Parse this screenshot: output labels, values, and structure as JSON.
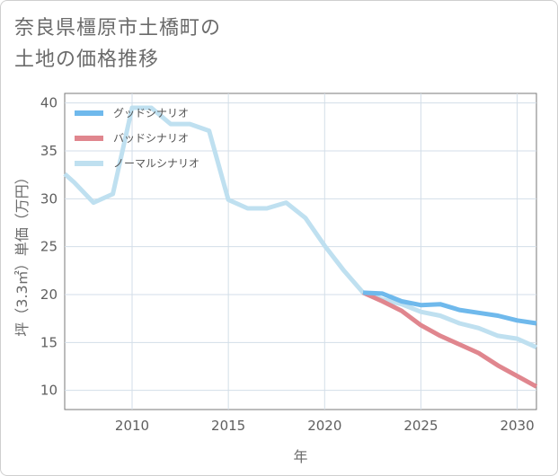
{
  "title": {
    "line1": "奈良県橿原市土橋町の",
    "line2": "土地の価格推移"
  },
  "chart_data": {
    "type": "line",
    "title": "奈良県橿原市土橋町の土地の価格推移",
    "xlabel": "年",
    "ylabel": "坪（3.3㎡）単価（万円）",
    "xlim": [
      2006.5,
      2031
    ],
    "ylim": [
      8,
      41
    ],
    "x_ticks": [
      2010,
      2015,
      2020,
      2025,
      2030
    ],
    "y_ticks": [
      10,
      15,
      20,
      25,
      30,
      35,
      40
    ],
    "grid": true,
    "legend_position": "top-left",
    "series": [
      {
        "name": "グッドシナリオ",
        "color": "#6fb9ec",
        "x": [
          2022,
          2023,
          2024,
          2025,
          2026,
          2027,
          2028,
          2029,
          2030,
          2031
        ],
        "values": [
          20.2,
          20.1,
          19.3,
          18.9,
          19.0,
          18.4,
          18.1,
          17.8,
          17.3,
          17.0
        ]
      },
      {
        "name": "バッドシナリオ",
        "color": "#e0868e",
        "x": [
          2022,
          2023,
          2024,
          2025,
          2026,
          2027,
          2028,
          2029,
          2030,
          2031
        ],
        "values": [
          20.2,
          19.3,
          18.3,
          16.8,
          15.7,
          14.8,
          13.9,
          12.6,
          11.5,
          10.4
        ]
      },
      {
        "name": "ノーマルシナリオ",
        "color": "#bfe0f0",
        "x": [
          2006.5,
          2007,
          2008,
          2009,
          2010,
          2011,
          2012,
          2013,
          2014,
          2015,
          2016,
          2017,
          2018,
          2019,
          2020,
          2021,
          2022,
          2023,
          2024,
          2025,
          2026,
          2027,
          2028,
          2029,
          2030,
          2031
        ],
        "values": [
          32.6,
          31.7,
          29.6,
          30.5,
          39.5,
          39.5,
          37.8,
          37.8,
          37.1,
          29.9,
          29.0,
          29.0,
          29.6,
          28.0,
          25.1,
          22.5,
          20.2,
          19.5,
          19.0,
          18.2,
          17.8,
          17.0,
          16.5,
          15.7,
          15.4,
          14.5
        ]
      }
    ]
  }
}
